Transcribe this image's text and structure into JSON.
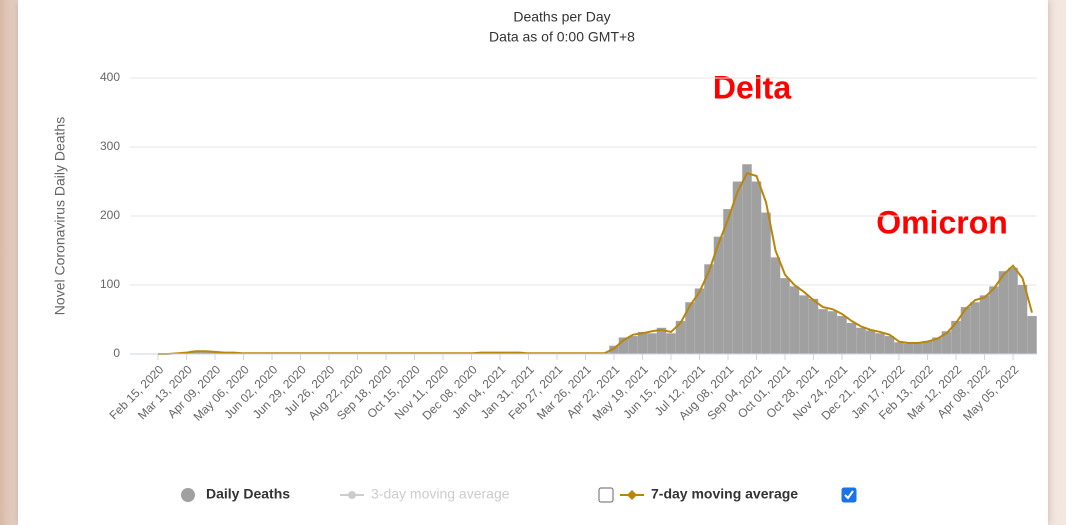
{
  "chart_data": {
    "type": "bar",
    "title": "Deaths per Day",
    "subtitle": "Data as of 0:00 GMT+8",
    "y_label": "Novel Coronavirus Daily Deaths",
    "annotations": [
      {
        "text": "Delta",
        "color": "#ff0000"
      },
      {
        "text": "Omicron",
        "color": "#ff0000"
      }
    ],
    "categories": [
      "Feb 15, 2020",
      null,
      null,
      "Mar 13, 2020",
      null,
      null,
      "Apr 09, 2020",
      null,
      null,
      "May 06, 2020",
      null,
      null,
      "Jun 02, 2020",
      null,
      null,
      "Jun 29, 2020",
      null,
      null,
      "Jul 26, 2020",
      null,
      null,
      "Aug 22, 2020",
      null,
      null,
      "Sep 18, 2020",
      null,
      null,
      "Oct 15, 2020",
      null,
      null,
      "Nov 11, 2020",
      null,
      null,
      "Dec 08, 2020",
      null,
      null,
      "Jan 04, 2021",
      null,
      null,
      "Jan 31, 2021",
      null,
      null,
      "Feb 27, 2021",
      null,
      null,
      "Mar 26, 2021",
      null,
      null,
      "Apr 22, 2021",
      null,
      null,
      "May 19, 2021",
      null,
      null,
      "Jun 15, 2021",
      null,
      null,
      "Jul 12, 2021",
      null,
      null,
      "Aug 08, 2021",
      null,
      null,
      "Sep 04, 2021",
      null,
      null,
      "Oct 01, 2021",
      null,
      null,
      "Oct 28, 2021",
      null,
      null,
      "Nov 24, 2021",
      null,
      null,
      "Dec 21, 2021",
      null,
      null,
      "Jan 17, 2022",
      null,
      null,
      "Feb 13, 2022",
      null,
      null,
      "Mar 12, 2022",
      null,
      null,
      "Apr 08, 2022",
      null,
      null,
      "May 05, 2022",
      null,
      null
    ],
    "series": [
      {
        "name": "Daily Deaths",
        "type": "bar",
        "color": "#a0a0a0",
        "values": [
          0,
          0,
          1,
          3,
          5,
          4,
          3,
          2,
          2,
          1,
          1,
          1,
          1,
          1,
          1,
          1,
          1,
          1,
          1,
          1,
          1,
          1,
          1,
          1,
          1,
          1,
          1,
          1,
          1,
          1,
          1,
          1,
          1,
          1,
          2,
          3,
          2,
          2,
          3,
          1,
          1,
          1,
          1,
          1,
          1,
          1,
          1,
          2,
          12,
          24,
          26,
          32,
          30,
          38,
          30,
          48,
          75,
          95,
          130,
          170,
          210,
          250,
          275,
          250,
          205,
          140,
          110,
          98,
          85,
          80,
          65,
          62,
          55,
          45,
          38,
          34,
          30,
          26,
          17,
          15,
          17,
          19,
          24,
          33,
          48,
          68,
          75,
          85,
          98,
          120,
          125,
          100,
          55
        ]
      },
      {
        "name": "7-day moving average",
        "type": "line",
        "color": "#b8860b",
        "checked": true,
        "values": [
          0,
          0,
          1,
          2,
          4,
          4,
          3,
          2,
          2,
          1,
          1,
          1,
          1,
          1,
          1,
          1,
          1,
          1,
          1,
          1,
          1,
          1,
          1,
          1,
          1,
          1,
          1,
          1,
          1,
          1,
          1,
          1,
          1,
          1,
          2,
          2,
          2,
          2,
          2,
          1,
          1,
          1,
          1,
          1,
          1,
          1,
          1,
          1,
          8,
          20,
          28,
          30,
          33,
          35,
          32,
          45,
          70,
          90,
          120,
          160,
          195,
          235,
          262,
          258,
          220,
          150,
          115,
          100,
          90,
          78,
          68,
          65,
          58,
          48,
          40,
          35,
          32,
          28,
          18,
          16,
          16,
          18,
          22,
          30,
          45,
          65,
          78,
          82,
          95,
          115,
          128,
          110,
          60
        ]
      }
    ],
    "hidden_series": {
      "name": "3-day moving average",
      "color": "#cccccc",
      "checked": false
    },
    "ylim": [
      0,
      400
    ],
    "yticks": [
      0,
      100,
      200,
      300,
      400
    ],
    "grid": true
  }
}
